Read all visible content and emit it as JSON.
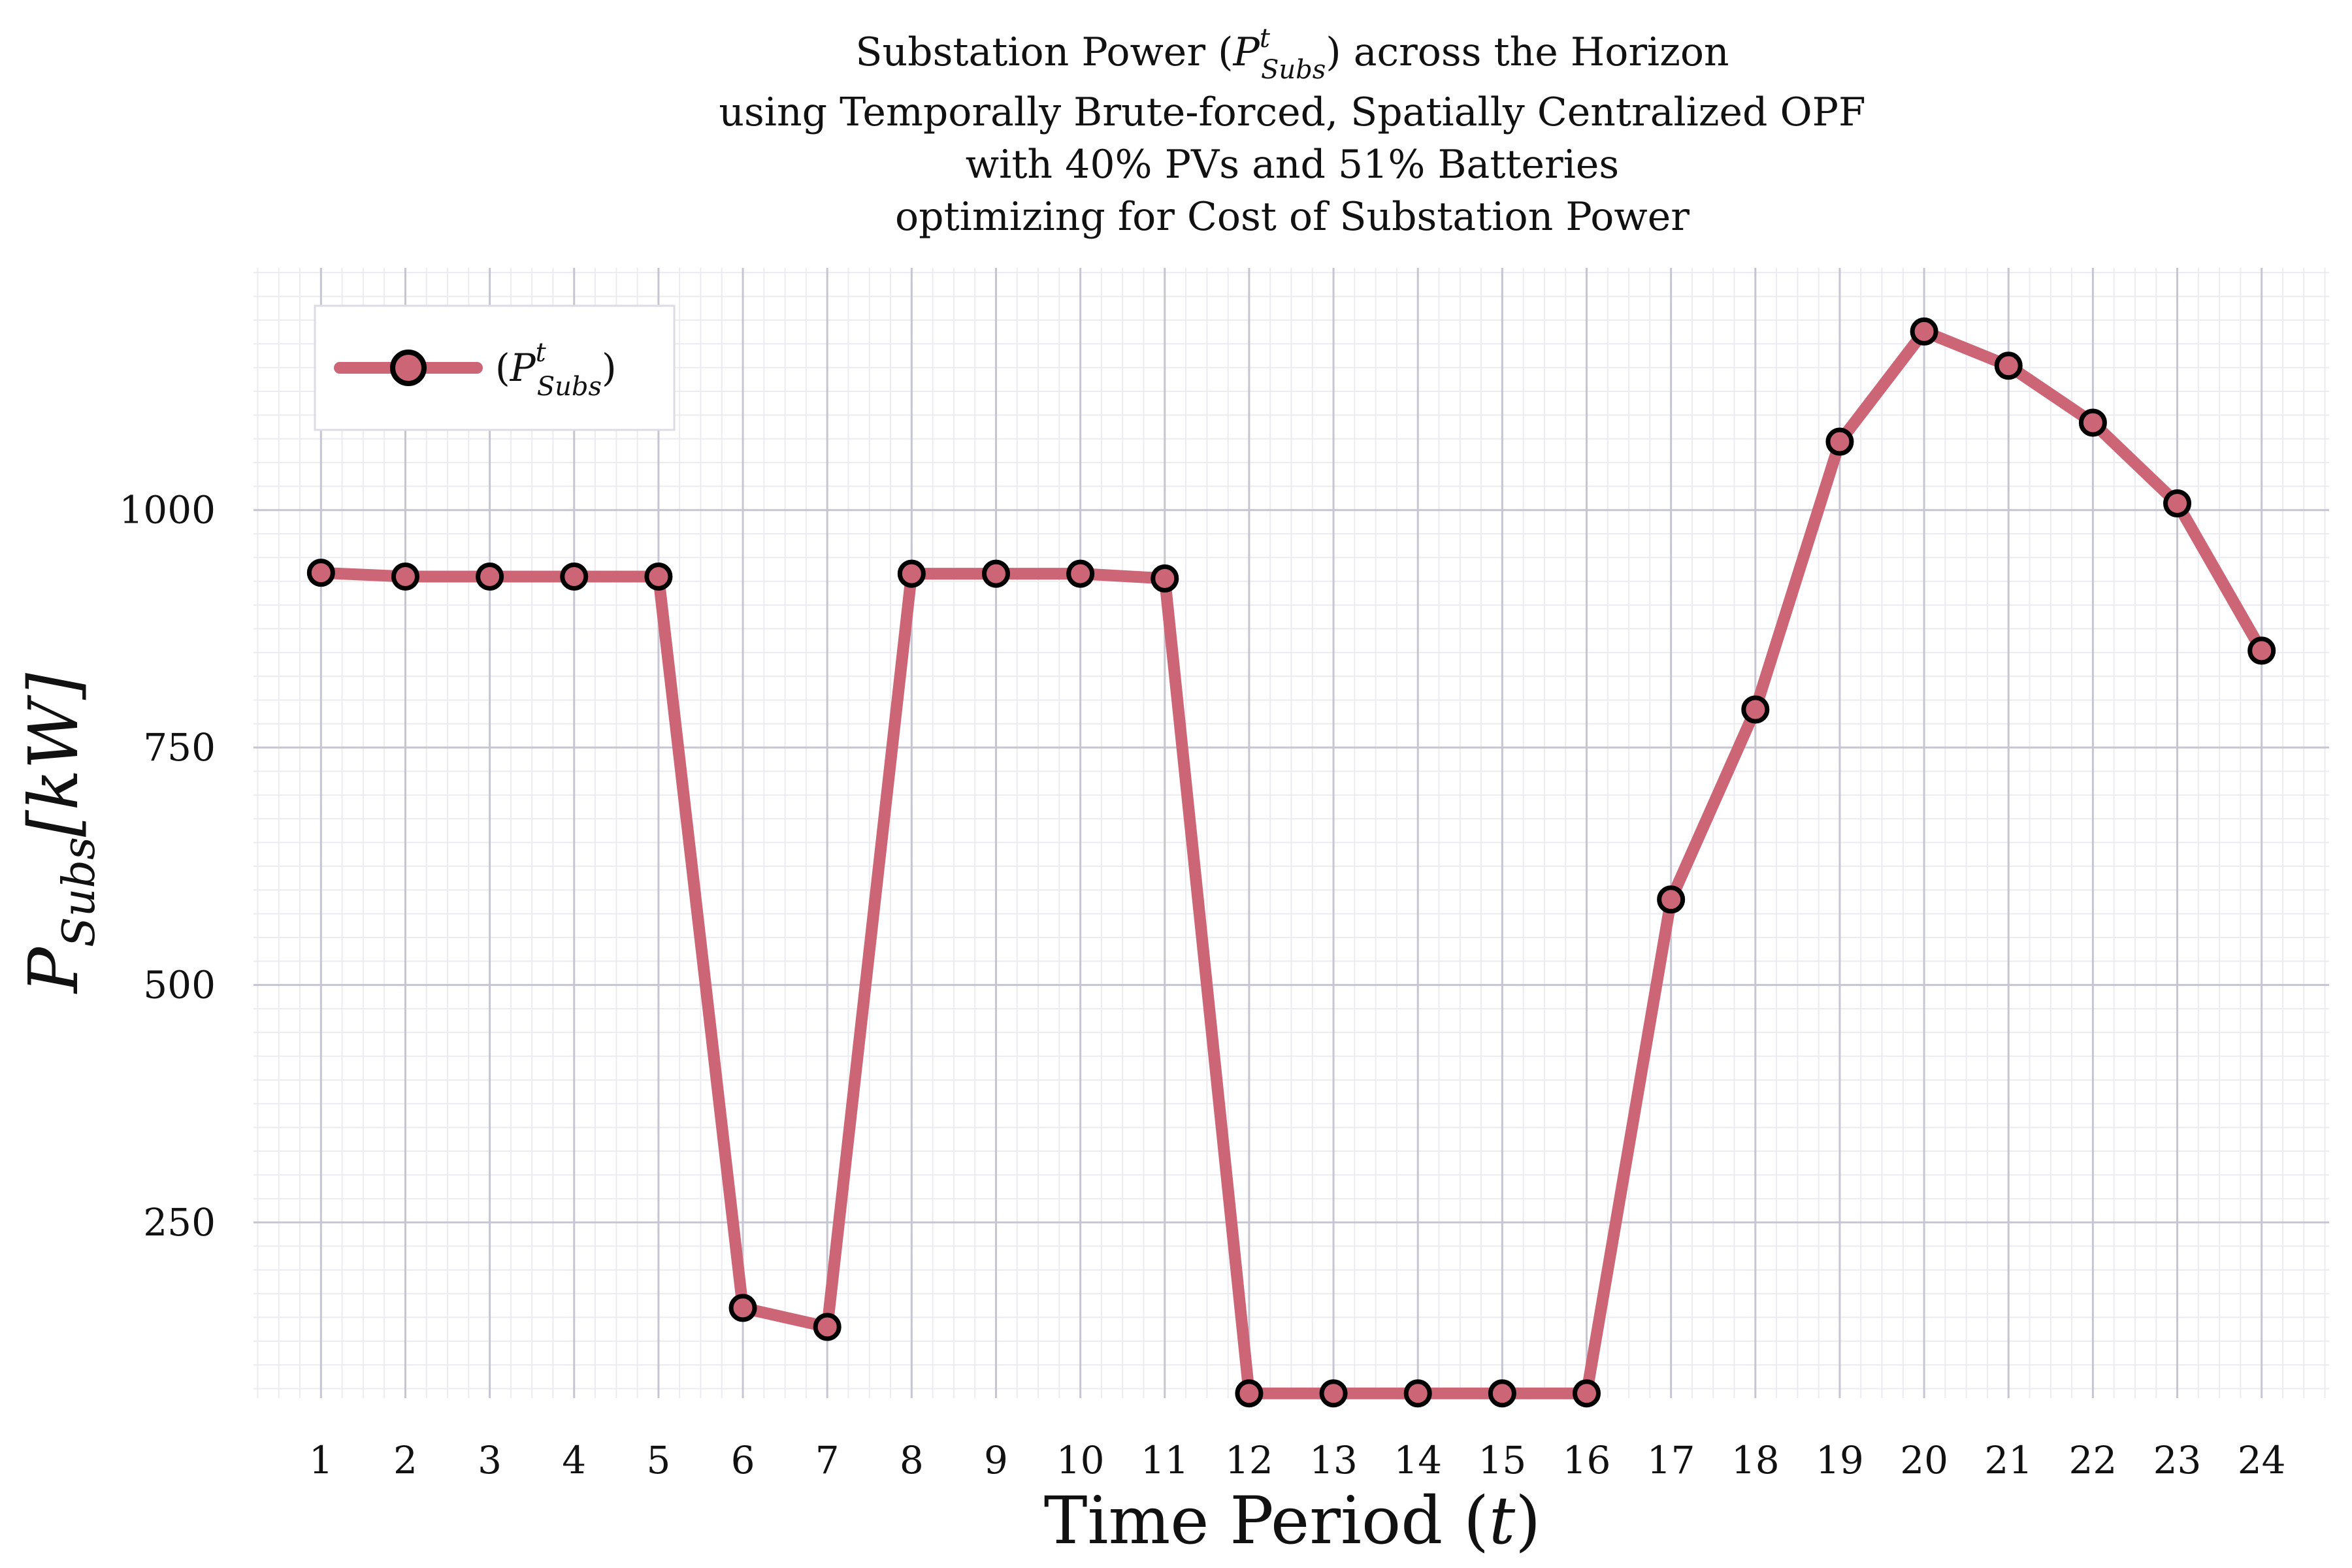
{
  "chart_data": {
    "type": "line",
    "title_lines": [
      "Substation Power (P",
      "using Temporally Brute-forced, Spatially Centralized OPF",
      "with 40% PVs and 51% Batteries",
      "optimizing for Cost of Substation Power"
    ],
    "title_math": {
      "base": "Substation Power (",
      "symbol": "P",
      "superscript": "t",
      "subscript": "Subs",
      "tail": ") across the Horizon"
    },
    "xlabel": {
      "text": "Time Period (",
      "var": "t",
      "close": ")"
    },
    "ylabel": {
      "symbol": "P",
      "subscript": "Subs",
      "unit": "[kW]"
    },
    "x": [
      1,
      2,
      3,
      4,
      5,
      6,
      7,
      8,
      9,
      10,
      11,
      12,
      13,
      14,
      15,
      16,
      17,
      18,
      19,
      20,
      21,
      22,
      23,
      24
    ],
    "y_ticks": [
      250,
      500,
      750,
      1000
    ],
    "xlim": [
      0.2,
      24.8
    ],
    "ylim": [
      65,
      1255
    ],
    "grid": true,
    "legend_position": "top-left",
    "series": [
      {
        "name": "(P_Subs^t)",
        "legend": {
          "open": "(",
          "symbol": "P",
          "superscript": "t",
          "subscript": "Subs",
          "close": ")"
        },
        "color": "#cc6677",
        "marker_edge": "#000000",
        "values": [
          934,
          930,
          930,
          930,
          930,
          160,
          140,
          933,
          933,
          933,
          928,
          70,
          70,
          70,
          70,
          70,
          590,
          790,
          1072,
          1188,
          1152,
          1092,
          1007,
          852
        ]
      }
    ]
  }
}
